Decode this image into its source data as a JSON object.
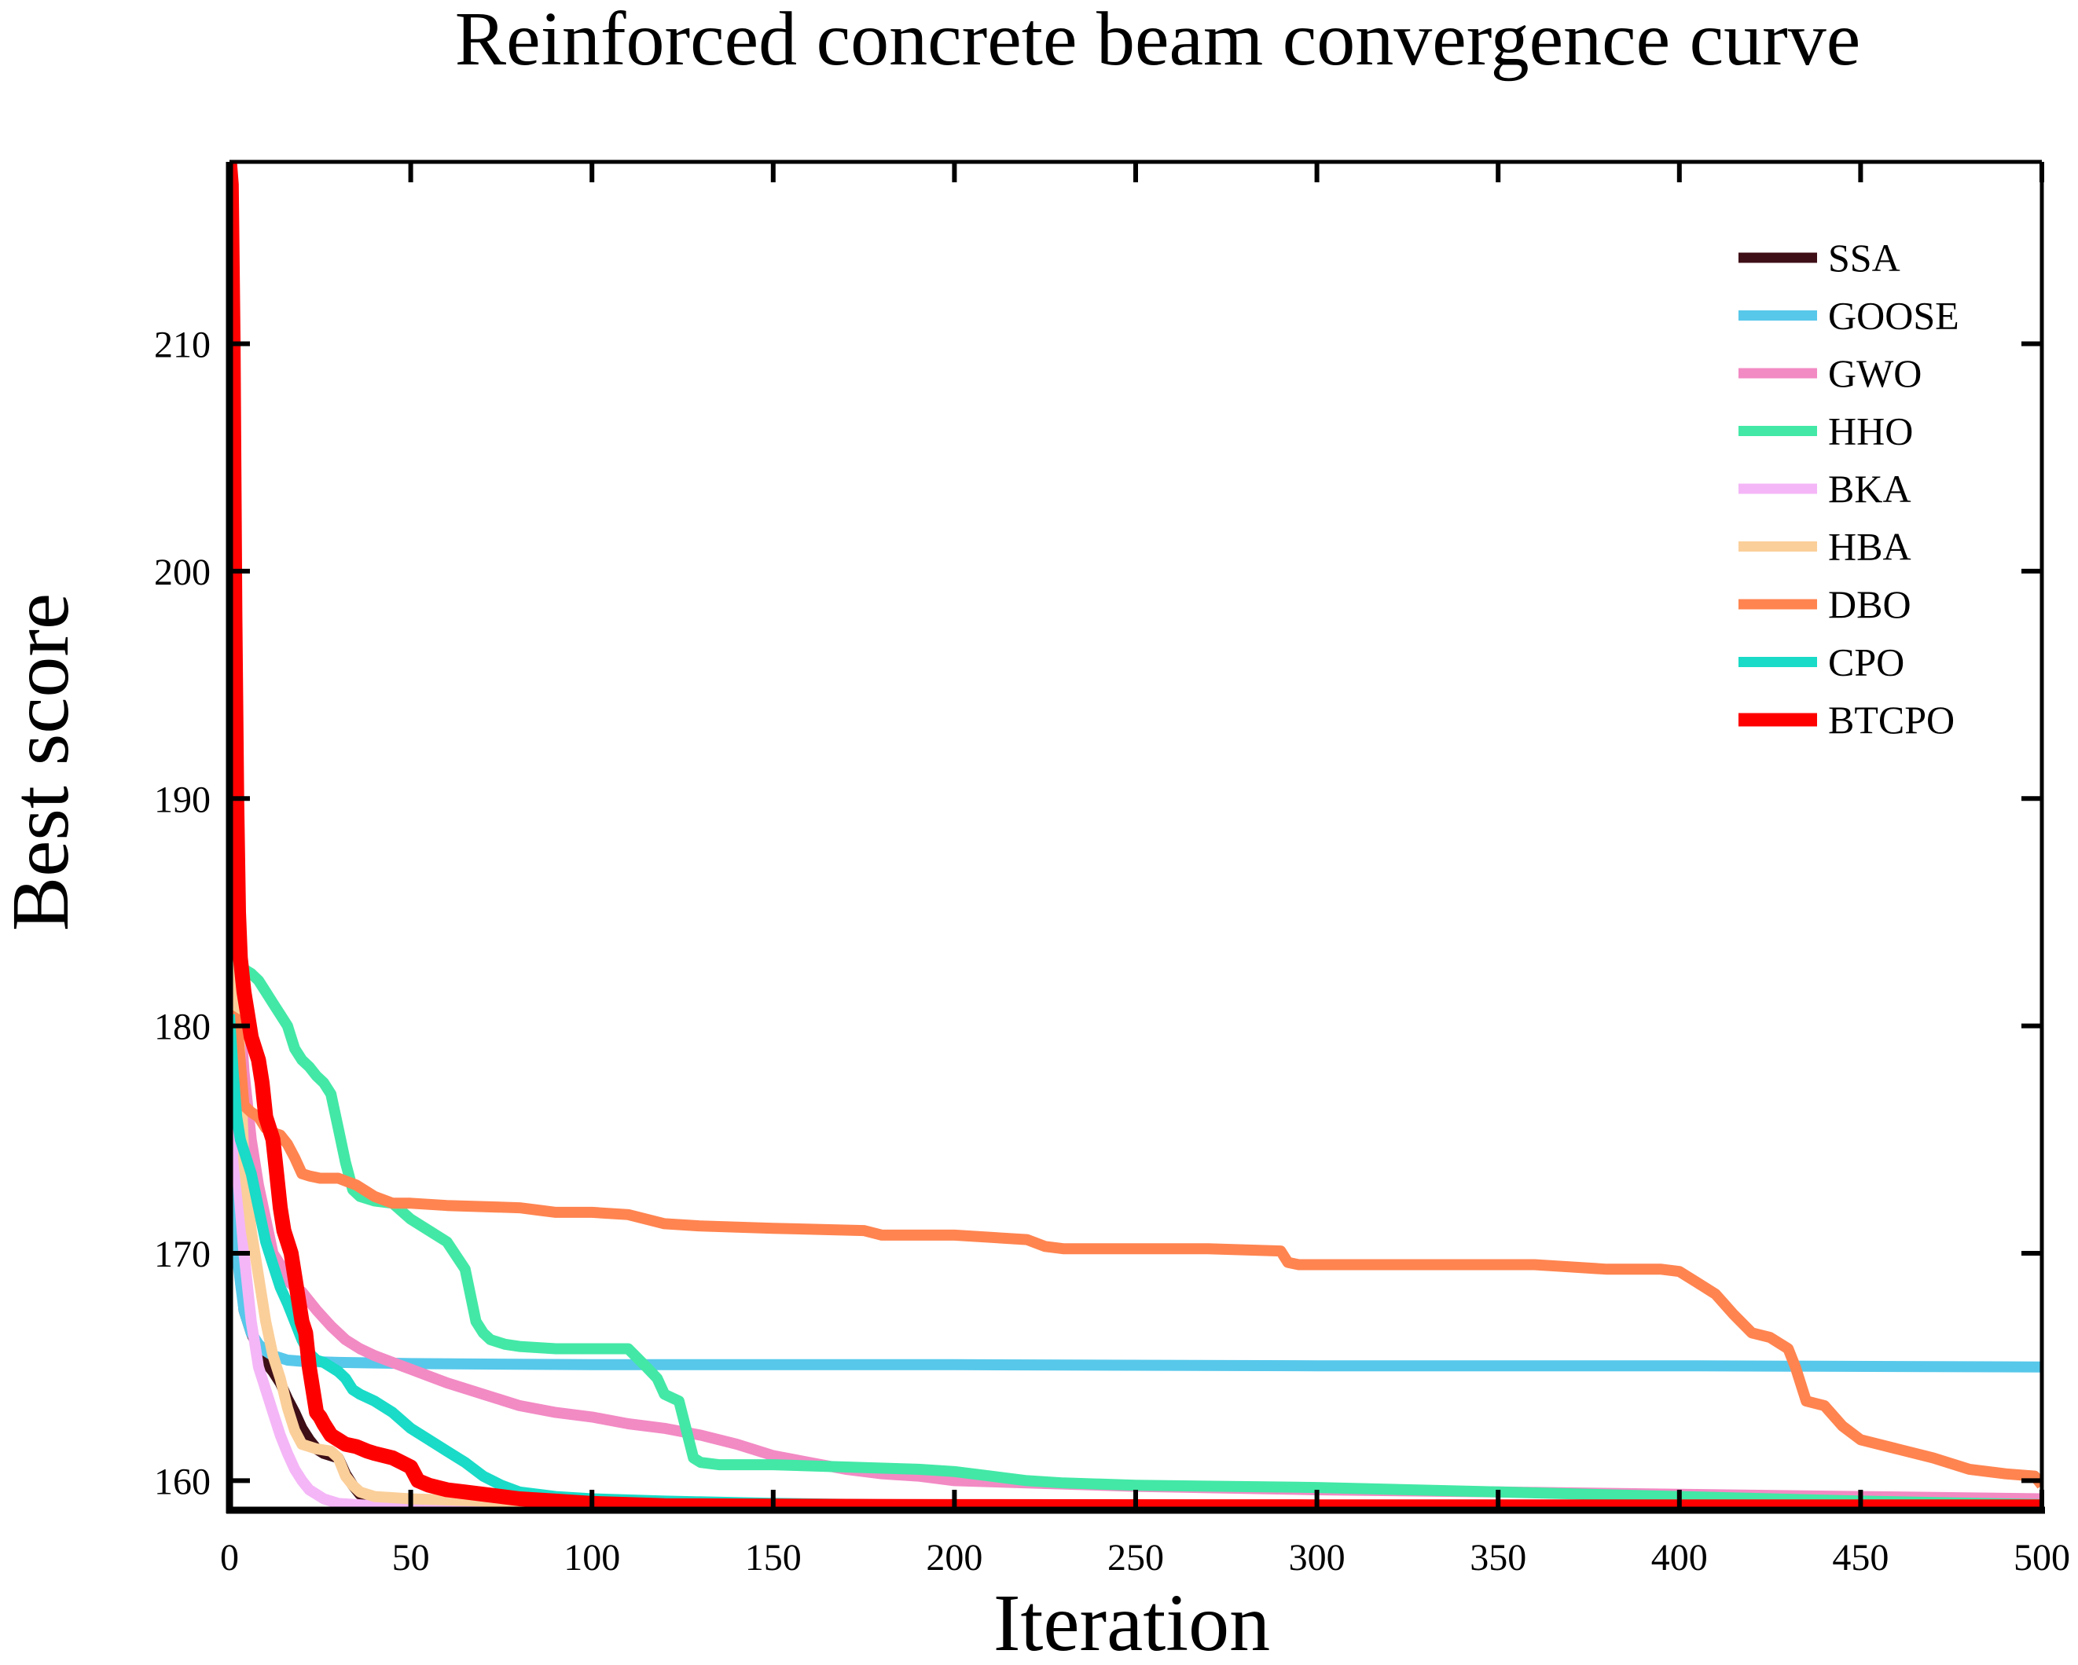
{
  "chart_data": {
    "type": "line",
    "title": "Reinforced concrete beam convergence curve",
    "xlabel": "Iteration",
    "ylabel": "Best score",
    "xlim": [
      0,
      500
    ],
    "ylim": [
      158.7,
      218
    ],
    "xticks": [
      0,
      50,
      100,
      150,
      200,
      250,
      300,
      350,
      400,
      450,
      500
    ],
    "yticks": [
      160,
      170,
      180,
      190,
      200,
      210
    ],
    "legend_position": "top-right",
    "series": [
      {
        "name": "SSA",
        "color": "#3e0f17",
        "x": [
          0,
          1,
          2,
          4,
          6,
          8,
          10,
          12,
          14,
          16,
          18,
          20,
          22,
          24,
          26,
          28,
          30,
          32,
          34,
          36,
          40,
          45,
          50,
          60,
          80,
          100,
          150,
          200,
          300,
          400,
          500
        ],
        "y": [
          177,
          174,
          171,
          167.5,
          166.5,
          165.8,
          165.2,
          164.8,
          164.3,
          163.6,
          163,
          162.3,
          161.8,
          161.4,
          161.2,
          161.1,
          161.0,
          160.3,
          159.8,
          159.4,
          159.2,
          159.05,
          158.95,
          158.9,
          158.88,
          158.86,
          158.85,
          158.85,
          158.84,
          158.84,
          158.84
        ]
      },
      {
        "name": "GOOSE",
        "color": "#57c8ea",
        "x": [
          0,
          1,
          2,
          4,
          6,
          8,
          10,
          12,
          14,
          16,
          20,
          30,
          50,
          100,
          200,
          300,
          400,
          500
        ],
        "y": [
          178,
          173,
          170,
          167.5,
          166.5,
          166,
          165.7,
          165.5,
          165.4,
          165.3,
          165.25,
          165.2,
          165.15,
          165.1,
          165.1,
          165.05,
          165.05,
          165.0
        ]
      },
      {
        "name": "GWO",
        "color": "#f28ac4",
        "x": [
          0,
          1,
          2,
          4,
          6,
          8,
          10,
          12,
          14,
          16,
          18,
          20,
          24,
          28,
          32,
          36,
          40,
          45,
          50,
          55,
          60,
          70,
          80,
          90,
          100,
          110,
          120,
          130,
          140,
          150,
          160,
          170,
          180,
          190,
          200,
          220,
          250,
          300,
          350,
          400,
          450,
          500
        ],
        "y": [
          198,
          190,
          183,
          178,
          175,
          173,
          171.5,
          170,
          169.5,
          168.8,
          168.5,
          168.3,
          167.5,
          166.8,
          166.2,
          165.8,
          165.5,
          165.2,
          164.9,
          164.6,
          164.3,
          163.8,
          163.3,
          163.0,
          162.8,
          162.5,
          162.3,
          162.0,
          161.6,
          161.1,
          160.8,
          160.5,
          160.3,
          160.2,
          160.0,
          159.9,
          159.75,
          159.6,
          159.5,
          159.4,
          159.3,
          159.2
        ]
      },
      {
        "name": "HHO",
        "color": "#43e8a6",
        "x": [
          0,
          1,
          2,
          4,
          6,
          8,
          10,
          12,
          14,
          16,
          18,
          20,
          22,
          24,
          26,
          28,
          30,
          32,
          34,
          36,
          40,
          45,
          50,
          55,
          60,
          65,
          68,
          70,
          72,
          76,
          80,
          90,
          100,
          110,
          115,
          118,
          120,
          124,
          128,
          130,
          135,
          150,
          170,
          190,
          200,
          210,
          220,
          230,
          250,
          300,
          350,
          400,
          450,
          500
        ],
        "y": [
          199,
          190,
          184,
          182.5,
          182.3,
          182.0,
          181.5,
          181.0,
          180.5,
          180.0,
          179.0,
          178.5,
          178.2,
          177.8,
          177.5,
          177.0,
          175.5,
          174.0,
          172.8,
          172.5,
          172.3,
          172.2,
          171.5,
          171.0,
          170.5,
          169.3,
          167.0,
          166.5,
          166.2,
          166.0,
          165.9,
          165.8,
          165.8,
          165.8,
          165.0,
          164.5,
          163.8,
          163.5,
          161.0,
          160.8,
          160.7,
          160.7,
          160.6,
          160.5,
          160.4,
          160.2,
          160.0,
          159.9,
          159.8,
          159.7,
          159.5,
          159.3,
          159.1,
          158.95
        ]
      },
      {
        "name": "BKA",
        "color": "#f4b6f7",
        "x": [
          0,
          1,
          2,
          4,
          6,
          8,
          10,
          12,
          14,
          16,
          18,
          20,
          22,
          24,
          26,
          28,
          30,
          35,
          40,
          50,
          60,
          80,
          100,
          150,
          200,
          300,
          400,
          500
        ],
        "y": [
          188,
          180,
          174,
          170,
          167,
          165,
          164,
          163,
          162,
          161.2,
          160.5,
          160,
          159.6,
          159.4,
          159.2,
          159.1,
          159.0,
          158.95,
          158.9,
          158.88,
          158.87,
          158.86,
          158.85,
          158.85,
          158.84,
          158.84,
          158.84,
          158.84
        ]
      },
      {
        "name": "HBA",
        "color": "#fbcf9a",
        "x": [
          0,
          1,
          2,
          4,
          6,
          8,
          10,
          12,
          14,
          16,
          18,
          20,
          24,
          28,
          30,
          32,
          34,
          36,
          40,
          50,
          60,
          70,
          80,
          90,
          100,
          110,
          120,
          150,
          200,
          300,
          400,
          500
        ],
        "y": [
          183.5,
          183,
          182.5,
          174,
          171,
          169,
          167,
          165.5,
          164.5,
          163.2,
          162.2,
          161.6,
          161.4,
          161.3,
          161.0,
          160.2,
          159.8,
          159.5,
          159.3,
          159.2,
          159.15,
          159.1,
          159.05,
          159.0,
          158.95,
          158.9,
          158.9,
          158.88,
          158.86,
          158.85,
          158.85,
          158.85
        ]
      },
      {
        "name": "DBO",
        "color": "#ff8450",
        "x": [
          0,
          2,
          4,
          6,
          8,
          10,
          12,
          14,
          16,
          18,
          20,
          22,
          25,
          30,
          35,
          40,
          45,
          50,
          60,
          80,
          85,
          90,
          100,
          110,
          120,
          130,
          150,
          175,
          180,
          200,
          220,
          225,
          230,
          250,
          270,
          290,
          292,
          295,
          300,
          320,
          340,
          360,
          370,
          380,
          395,
          400,
          405,
          410,
          415,
          420,
          425,
          430,
          432,
          435,
          440,
          445,
          450,
          460,
          470,
          480,
          490,
          498,
          500
        ],
        "y": [
          180.5,
          180.3,
          176.5,
          176.2,
          176.0,
          175.5,
          175.3,
          175.2,
          174.8,
          174.2,
          173.5,
          173.4,
          173.3,
          173.3,
          173.0,
          172.5,
          172.2,
          172.2,
          172.1,
          172.0,
          171.9,
          171.8,
          171.8,
          171.7,
          171.3,
          171.2,
          171.1,
          171.0,
          170.8,
          170.8,
          170.6,
          170.3,
          170.2,
          170.2,
          170.2,
          170.1,
          169.6,
          169.5,
          169.5,
          169.5,
          169.5,
          169.5,
          169.4,
          169.3,
          169.3,
          169.2,
          168.7,
          168.2,
          167.3,
          166.5,
          166.3,
          165.8,
          165.0,
          163.5,
          163.3,
          162.4,
          161.8,
          161.4,
          161.0,
          160.5,
          160.3,
          160.2,
          159.8
        ]
      },
      {
        "name": "CPO",
        "color": "#19dbc7",
        "x": [
          0,
          1,
          2,
          3,
          4,
          6,
          8,
          10,
          12,
          14,
          16,
          18,
          20,
          22,
          24,
          26,
          28,
          30,
          32,
          34,
          36,
          40,
          45,
          50,
          55,
          60,
          65,
          70,
          75,
          80,
          90,
          100,
          120,
          150,
          200,
          300,
          400,
          500
        ],
        "y": [
          180.5,
          178,
          176,
          175,
          174.5,
          173.5,
          172,
          170.5,
          169.5,
          168.5,
          167.8,
          167.0,
          166.2,
          165.6,
          165.3,
          165.2,
          165.0,
          164.8,
          164.5,
          164.0,
          163.8,
          163.5,
          163.0,
          162.3,
          161.8,
          161.3,
          160.8,
          160.2,
          159.8,
          159.5,
          159.3,
          159.2,
          159.1,
          159.0,
          158.9,
          158.88,
          158.86,
          158.85
        ]
      },
      {
        "name": "BTCPO",
        "color": "#ff0000",
        "x": [
          0,
          0.5,
          1,
          1.5,
          2,
          2.5,
          3,
          4,
          5,
          6,
          7,
          8,
          9,
          10,
          11,
          12,
          13,
          14,
          15,
          16,
          17,
          18,
          19,
          20,
          21,
          22,
          23,
          24,
          25,
          26,
          28,
          30,
          32,
          35,
          38,
          40,
          45,
          50,
          52,
          55,
          60,
          65,
          70,
          75,
          80,
          90,
          100,
          110,
          120,
          150,
          200,
          300,
          400,
          500
        ],
        "y": [
          218,
          217,
          210,
          198,
          190,
          185,
          183,
          181.5,
          180.5,
          179.5,
          179,
          178.5,
          177.5,
          176,
          175.5,
          175,
          173.5,
          172,
          171,
          170.5,
          170,
          169,
          168,
          167,
          166.5,
          165,
          164,
          163,
          162.8,
          162.5,
          162.0,
          161.8,
          161.6,
          161.5,
          161.3,
          161.2,
          161.0,
          160.6,
          160.0,
          159.8,
          159.6,
          159.5,
          159.4,
          159.3,
          159.2,
          159.1,
          159.0,
          158.95,
          158.9,
          158.88,
          158.86,
          158.85,
          158.85,
          158.85
        ]
      }
    ]
  }
}
